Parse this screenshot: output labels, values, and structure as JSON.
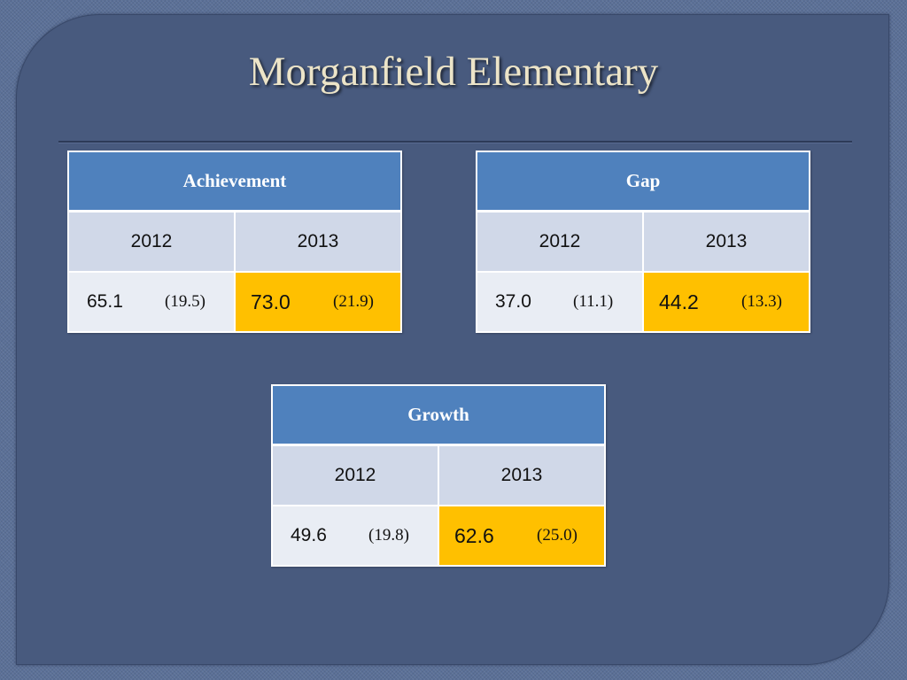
{
  "title": "Morganfield Elementary",
  "colors": {
    "header": "#4f81bd",
    "highlight": "#ffc000",
    "year_row": "#d0d8e8",
    "value_row": "#e9edf4"
  },
  "tables": [
    {
      "header": "Achievement",
      "years": [
        "2012",
        "2013"
      ],
      "values": [
        {
          "value": "65.1",
          "paren": "(19.5)"
        },
        {
          "value": "73.0",
          "paren": "(21.9)"
        }
      ]
    },
    {
      "header": "Gap",
      "years": [
        "2012",
        "2013"
      ],
      "values": [
        {
          "value": "37.0",
          "paren": "(11.1)"
        },
        {
          "value": "44.2",
          "paren": "(13.3)"
        }
      ]
    },
    {
      "header": "Growth",
      "years": [
        "2012",
        "2013"
      ],
      "values": [
        {
          "value": "49.6",
          "paren": "(19.8)"
        },
        {
          "value": "62.6",
          "paren": "(25.0)"
        }
      ]
    }
  ]
}
